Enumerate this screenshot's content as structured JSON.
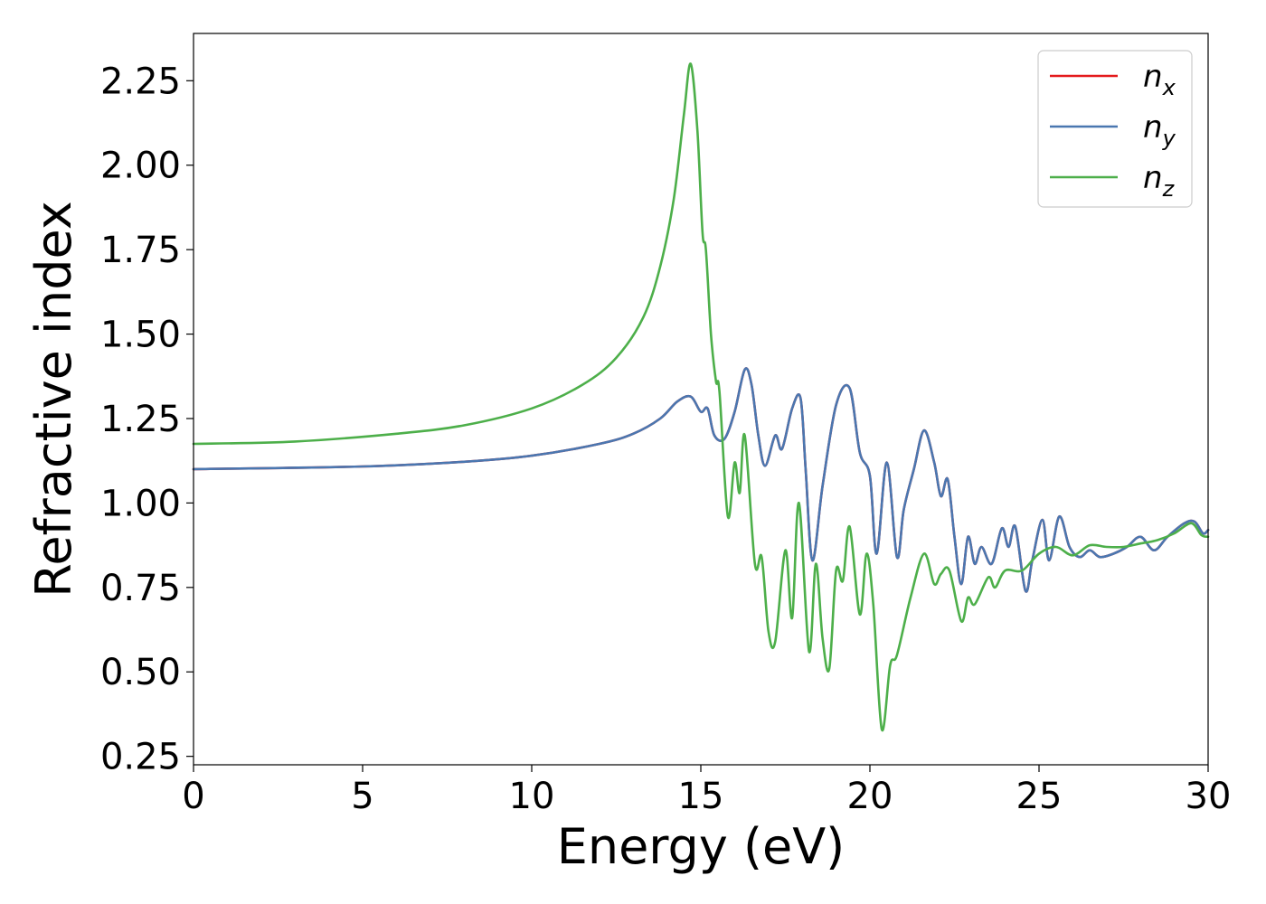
{
  "chart_data": {
    "type": "line",
    "title": "",
    "xlabel": "Energy (eV)",
    "ylabel": "Refractive index",
    "xlim": [
      0,
      30
    ],
    "ylim": [
      0.225,
      2.39
    ],
    "xticks": [
      "0",
      "5",
      "10",
      "15",
      "20",
      "25",
      "30"
    ],
    "yticks": [
      "0.25",
      "0.50",
      "0.75",
      "1.00",
      "1.25",
      "1.50",
      "1.75",
      "2.00",
      "2.25"
    ],
    "grid": false,
    "legend_position": "top-right",
    "series": [
      {
        "name_base": "n",
        "name_sub": "x",
        "color": "#e41a1c",
        "points": [
          [
            0,
            1.1
          ],
          [
            5,
            1.108
          ],
          [
            8,
            1.122
          ],
          [
            10,
            1.14
          ],
          [
            12,
            1.175
          ],
          [
            13,
            1.205
          ],
          [
            13.8,
            1.25
          ],
          [
            14.3,
            1.3
          ],
          [
            14.7,
            1.315
          ],
          [
            15.0,
            1.27
          ],
          [
            15.2,
            1.28
          ],
          [
            15.4,
            1.2
          ],
          [
            15.7,
            1.19
          ],
          [
            16.0,
            1.27
          ],
          [
            16.3,
            1.395
          ],
          [
            16.5,
            1.35
          ],
          [
            16.7,
            1.2
          ],
          [
            16.9,
            1.11
          ],
          [
            17.2,
            1.2
          ],
          [
            17.4,
            1.16
          ],
          [
            17.7,
            1.28
          ],
          [
            17.95,
            1.31
          ],
          [
            18.1,
            1.1
          ],
          [
            18.3,
            0.83
          ],
          [
            18.6,
            1.05
          ],
          [
            19.0,
            1.29
          ],
          [
            19.4,
            1.34
          ],
          [
            19.7,
            1.15
          ],
          [
            20.0,
            1.08
          ],
          [
            20.2,
            0.85
          ],
          [
            20.5,
            1.12
          ],
          [
            20.8,
            0.84
          ],
          [
            21.0,
            0.98
          ],
          [
            21.3,
            1.1
          ],
          [
            21.6,
            1.215
          ],
          [
            21.9,
            1.12
          ],
          [
            22.1,
            1.02
          ],
          [
            22.3,
            1.07
          ],
          [
            22.5,
            0.9
          ],
          [
            22.7,
            0.76
          ],
          [
            22.9,
            0.9
          ],
          [
            23.1,
            0.82
          ],
          [
            23.3,
            0.87
          ],
          [
            23.6,
            0.82
          ],
          [
            23.9,
            0.925
          ],
          [
            24.1,
            0.87
          ],
          [
            24.3,
            0.93
          ],
          [
            24.6,
            0.74
          ],
          [
            24.8,
            0.83
          ],
          [
            25.1,
            0.95
          ],
          [
            25.3,
            0.83
          ],
          [
            25.6,
            0.96
          ],
          [
            25.9,
            0.87
          ],
          [
            26.2,
            0.84
          ],
          [
            26.5,
            0.86
          ],
          [
            26.8,
            0.84
          ],
          [
            27.2,
            0.85
          ],
          [
            27.6,
            0.87
          ],
          [
            28.0,
            0.9
          ],
          [
            28.4,
            0.86
          ],
          [
            28.8,
            0.9
          ],
          [
            29.3,
            0.94
          ],
          [
            29.6,
            0.945
          ],
          [
            29.85,
            0.91
          ],
          [
            30,
            0.92
          ]
        ]
      },
      {
        "name_base": "n",
        "name_sub": "y",
        "color": "#4a77b0",
        "points": [
          [
            0,
            1.1
          ],
          [
            5,
            1.108
          ],
          [
            8,
            1.122
          ],
          [
            10,
            1.14
          ],
          [
            12,
            1.175
          ],
          [
            13,
            1.205
          ],
          [
            13.8,
            1.25
          ],
          [
            14.3,
            1.3
          ],
          [
            14.7,
            1.315
          ],
          [
            15.0,
            1.27
          ],
          [
            15.2,
            1.28
          ],
          [
            15.4,
            1.2
          ],
          [
            15.7,
            1.19
          ],
          [
            16.0,
            1.27
          ],
          [
            16.3,
            1.395
          ],
          [
            16.5,
            1.35
          ],
          [
            16.7,
            1.2
          ],
          [
            16.9,
            1.11
          ],
          [
            17.2,
            1.2
          ],
          [
            17.4,
            1.16
          ],
          [
            17.7,
            1.28
          ],
          [
            17.95,
            1.31
          ],
          [
            18.1,
            1.1
          ],
          [
            18.3,
            0.83
          ],
          [
            18.6,
            1.05
          ],
          [
            19.0,
            1.29
          ],
          [
            19.4,
            1.34
          ],
          [
            19.7,
            1.15
          ],
          [
            20.0,
            1.08
          ],
          [
            20.2,
            0.85
          ],
          [
            20.5,
            1.12
          ],
          [
            20.8,
            0.84
          ],
          [
            21.0,
            0.98
          ],
          [
            21.3,
            1.1
          ],
          [
            21.6,
            1.215
          ],
          [
            21.9,
            1.12
          ],
          [
            22.1,
            1.02
          ],
          [
            22.3,
            1.07
          ],
          [
            22.5,
            0.9
          ],
          [
            22.7,
            0.76
          ],
          [
            22.9,
            0.9
          ],
          [
            23.1,
            0.82
          ],
          [
            23.3,
            0.87
          ],
          [
            23.6,
            0.82
          ],
          [
            23.9,
            0.925
          ],
          [
            24.1,
            0.87
          ],
          [
            24.3,
            0.93
          ],
          [
            24.6,
            0.74
          ],
          [
            24.8,
            0.83
          ],
          [
            25.1,
            0.95
          ],
          [
            25.3,
            0.83
          ],
          [
            25.6,
            0.96
          ],
          [
            25.9,
            0.87
          ],
          [
            26.2,
            0.84
          ],
          [
            26.5,
            0.86
          ],
          [
            26.8,
            0.84
          ],
          [
            27.2,
            0.85
          ],
          [
            27.6,
            0.87
          ],
          [
            28.0,
            0.9
          ],
          [
            28.4,
            0.86
          ],
          [
            28.8,
            0.9
          ],
          [
            29.3,
            0.94
          ],
          [
            29.6,
            0.945
          ],
          [
            29.85,
            0.91
          ],
          [
            30,
            0.92
          ]
        ]
      },
      {
        "name_base": "n",
        "name_sub": "z",
        "color": "#4daf4a",
        "points": [
          [
            0,
            1.175
          ],
          [
            3,
            1.182
          ],
          [
            6,
            1.205
          ],
          [
            8,
            1.23
          ],
          [
            10,
            1.28
          ],
          [
            11.5,
            1.35
          ],
          [
            12.5,
            1.43
          ],
          [
            13.3,
            1.55
          ],
          [
            13.8,
            1.7
          ],
          [
            14.2,
            1.9
          ],
          [
            14.5,
            2.15
          ],
          [
            14.7,
            2.3
          ],
          [
            14.9,
            2.1
          ],
          [
            15.05,
            1.8
          ],
          [
            15.15,
            1.75
          ],
          [
            15.3,
            1.5
          ],
          [
            15.45,
            1.36
          ],
          [
            15.55,
            1.33
          ],
          [
            15.8,
            0.96
          ],
          [
            16.0,
            1.12
          ],
          [
            16.15,
            1.03
          ],
          [
            16.3,
            1.2
          ],
          [
            16.6,
            0.82
          ],
          [
            16.8,
            0.84
          ],
          [
            17.0,
            0.62
          ],
          [
            17.2,
            0.59
          ],
          [
            17.5,
            0.86
          ],
          [
            17.7,
            0.66
          ],
          [
            17.9,
            1.0
          ],
          [
            18.2,
            0.56
          ],
          [
            18.4,
            0.82
          ],
          [
            18.6,
            0.6
          ],
          [
            18.8,
            0.51
          ],
          [
            19.0,
            0.8
          ],
          [
            19.2,
            0.77
          ],
          [
            19.4,
            0.93
          ],
          [
            19.7,
            0.67
          ],
          [
            19.9,
            0.85
          ],
          [
            20.1,
            0.7
          ],
          [
            20.35,
            0.33
          ],
          [
            20.6,
            0.52
          ],
          [
            20.8,
            0.55
          ],
          [
            21.2,
            0.72
          ],
          [
            21.6,
            0.85
          ],
          [
            21.9,
            0.76
          ],
          [
            22.1,
            0.79
          ],
          [
            22.35,
            0.8
          ],
          [
            22.7,
            0.65
          ],
          [
            22.9,
            0.72
          ],
          [
            23.1,
            0.7
          ],
          [
            23.5,
            0.78
          ],
          [
            23.7,
            0.75
          ],
          [
            24.0,
            0.8
          ],
          [
            24.5,
            0.8
          ],
          [
            25.0,
            0.85
          ],
          [
            25.5,
            0.87
          ],
          [
            26.0,
            0.845
          ],
          [
            26.5,
            0.875
          ],
          [
            27.0,
            0.87
          ],
          [
            27.5,
            0.87
          ],
          [
            28.0,
            0.88
          ],
          [
            28.5,
            0.89
          ],
          [
            29.0,
            0.91
          ],
          [
            29.5,
            0.94
          ],
          [
            29.8,
            0.905
          ],
          [
            30,
            0.9
          ]
        ]
      }
    ]
  }
}
